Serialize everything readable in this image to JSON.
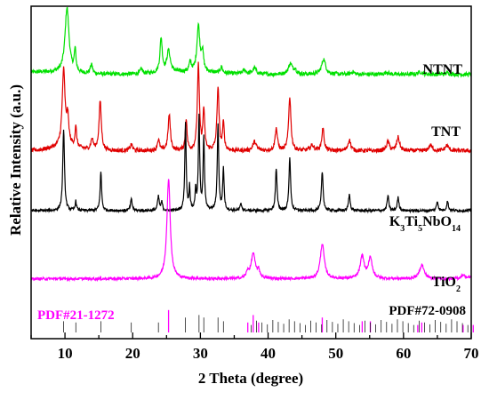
{
  "chart_data": {
    "type": "line",
    "xlabel": "2 Theta (degree)",
    "ylabel": "Relative Intensity (a.u.)",
    "xlim": [
      5,
      70
    ],
    "x_ticks": [
      10,
      20,
      30,
      40,
      50,
      60,
      70
    ],
    "grid": false,
    "series": [
      {
        "name": "NTNT",
        "color": "#00e000",
        "baseline": 0.795,
        "scale": 0.23,
        "noise": 0.006,
        "bumps": [
          [
            7,
            0.03,
            5
          ],
          [
            28,
            0.03,
            6
          ]
        ],
        "peaks": [
          [
            10.3,
            0.85,
            0.35
          ],
          [
            11.5,
            0.28,
            0.15
          ],
          [
            13.9,
            0.12,
            0.2
          ],
          [
            21.3,
            0.06,
            0.2
          ],
          [
            24.2,
            0.45,
            0.2
          ],
          [
            25.3,
            0.28,
            0.3
          ],
          [
            28.5,
            0.12,
            0.2
          ],
          [
            29.7,
            0.6,
            0.25
          ],
          [
            30.3,
            0.25,
            0.2
          ],
          [
            33.1,
            0.08,
            0.2
          ],
          [
            36.5,
            0.05,
            0.3
          ],
          [
            38.0,
            0.08,
            0.3
          ],
          [
            43.3,
            0.14,
            0.35
          ],
          [
            44.0,
            0.06,
            0.2
          ],
          [
            48.2,
            0.2,
            0.35
          ],
          [
            52.5,
            0.03,
            0.3
          ],
          [
            57.5,
            0.03,
            0.3
          ],
          [
            62.5,
            0.03,
            0.4
          ],
          [
            66.5,
            0.02,
            0.3
          ]
        ]
      },
      {
        "name": "TNT",
        "color": "#e00000",
        "baseline": 0.565,
        "scale": 0.27,
        "noise": 0.006,
        "bumps": [
          [
            10,
            0.04,
            3
          ]
        ],
        "peaks": [
          [
            9.8,
            0.85,
            0.25
          ],
          [
            10.4,
            0.3,
            0.2
          ],
          [
            11.6,
            0.22,
            0.15
          ],
          [
            14.0,
            0.12,
            0.2
          ],
          [
            15.2,
            0.55,
            0.2
          ],
          [
            19.8,
            0.07,
            0.2
          ],
          [
            23.8,
            0.12,
            0.2
          ],
          [
            25.4,
            0.4,
            0.2
          ],
          [
            27.9,
            0.35,
            0.15
          ],
          [
            29.7,
            0.95,
            0.18
          ],
          [
            30.5,
            0.45,
            0.15
          ],
          [
            32.6,
            0.7,
            0.18
          ],
          [
            33.4,
            0.3,
            0.15
          ],
          [
            38.0,
            0.1,
            0.3
          ],
          [
            41.2,
            0.25,
            0.2
          ],
          [
            43.2,
            0.6,
            0.2
          ],
          [
            46.5,
            0.06,
            0.3
          ],
          [
            48.1,
            0.25,
            0.2
          ],
          [
            52.0,
            0.12,
            0.25
          ],
          [
            57.7,
            0.1,
            0.25
          ],
          [
            59.2,
            0.15,
            0.25
          ],
          [
            64.0,
            0.06,
            0.3
          ],
          [
            66.4,
            0.06,
            0.3
          ]
        ]
      },
      {
        "name": "K3Ti5NbO14",
        "color": "#000000",
        "baseline": 0.385,
        "scale": 0.28,
        "noise": 0.004,
        "bumps": [],
        "peaks": [
          [
            9.8,
            0.88,
            0.15
          ],
          [
            11.6,
            0.1,
            0.12
          ],
          [
            15.3,
            0.42,
            0.13
          ],
          [
            19.8,
            0.12,
            0.15
          ],
          [
            23.8,
            0.15,
            0.15
          ],
          [
            24.3,
            0.09,
            0.12
          ],
          [
            27.8,
            0.95,
            0.12
          ],
          [
            28.4,
            0.25,
            0.1
          ],
          [
            29.3,
            0.22,
            0.1
          ],
          [
            29.8,
            1.0,
            0.12
          ],
          [
            30.5,
            0.78,
            0.12
          ],
          [
            32.6,
            0.92,
            0.13
          ],
          [
            33.4,
            0.45,
            0.12
          ],
          [
            36.0,
            0.07,
            0.15
          ],
          [
            41.2,
            0.45,
            0.14
          ],
          [
            43.2,
            0.58,
            0.14
          ],
          [
            48.0,
            0.42,
            0.15
          ],
          [
            52.0,
            0.17,
            0.15
          ],
          [
            57.7,
            0.16,
            0.15
          ],
          [
            59.2,
            0.14,
            0.15
          ],
          [
            65.0,
            0.1,
            0.15
          ],
          [
            66.5,
            0.1,
            0.15
          ]
        ]
      },
      {
        "name": "TiO2",
        "color": "#ff00ff",
        "baseline": 0.18,
        "scale": 0.3,
        "noise": 0.004,
        "bumps": [],
        "peaks": [
          [
            25.3,
            1.0,
            0.3
          ],
          [
            37.0,
            0.06,
            0.25
          ],
          [
            37.8,
            0.25,
            0.35
          ],
          [
            38.6,
            0.07,
            0.25
          ],
          [
            48.0,
            0.35,
            0.35
          ],
          [
            53.9,
            0.22,
            0.35
          ],
          [
            55.1,
            0.2,
            0.35
          ],
          [
            62.7,
            0.14,
            0.4
          ],
          [
            68.8,
            0.04,
            0.3
          ],
          [
            70.3,
            0.05,
            0.3
          ]
        ]
      }
    ],
    "series_labels": [
      {
        "text": "NTNT"
      },
      {
        "text": "TNT"
      },
      {
        "text": "K",
        "sub1": "3",
        "mid1": "Ti",
        "sub2": "5",
        "mid2": "NbO",
        "sub3": "14"
      },
      {
        "text": "TiO",
        "sub1": "2"
      }
    ],
    "reference_patterns": [
      {
        "name": "PDF#21-1272",
        "color": "#ff00ff",
        "lines": [
          [
            25.3,
            0.9
          ],
          [
            37.0,
            0.4
          ],
          [
            37.8,
            0.7
          ],
          [
            38.6,
            0.4
          ],
          [
            48.0,
            0.6
          ],
          [
            53.9,
            0.45
          ],
          [
            55.1,
            0.45
          ],
          [
            62.1,
            0.3
          ],
          [
            62.7,
            0.4
          ],
          [
            68.8,
            0.3
          ],
          [
            70.3,
            0.3
          ]
        ]
      },
      {
        "name": "PDF#72-0908",
        "color": "#000000",
        "lines": [
          [
            9.8,
            0.45
          ],
          [
            11.6,
            0.4
          ],
          [
            15.3,
            0.45
          ],
          [
            19.8,
            0.4
          ],
          [
            23.8,
            0.4
          ],
          [
            27.8,
            0.6
          ],
          [
            29.8,
            0.7
          ],
          [
            30.5,
            0.6
          ],
          [
            32.6,
            0.6
          ],
          [
            33.4,
            0.45
          ]
        ],
        "dense_range": [
          37.5,
          70
        ],
        "dense_step": 0.8
      }
    ]
  }
}
